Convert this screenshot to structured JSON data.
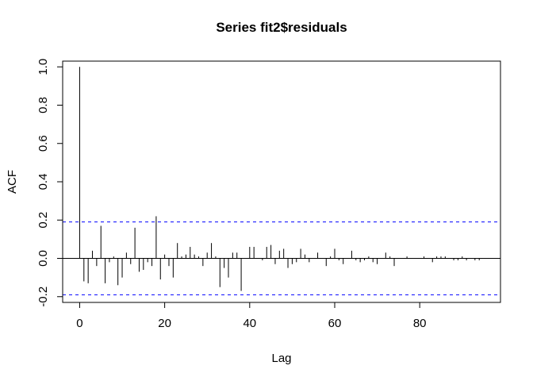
{
  "chart_data": {
    "type": "bar",
    "title": "Series  fit2$residuals",
    "xlabel": "Lag",
    "ylabel": "ACF",
    "xlim": [
      -4,
      99
    ],
    "ylim": [
      -0.23,
      1.03
    ],
    "xticks": [
      0,
      20,
      40,
      60,
      80
    ],
    "xtick_labels": [
      "0",
      "20",
      "40",
      "60",
      "80"
    ],
    "yticks": [
      -0.2,
      0.0,
      0.2,
      0.4,
      0.6,
      0.8,
      1.0
    ],
    "ytick_labels": [
      "-0.2",
      "0.0",
      "0.2",
      "0.4",
      "0.6",
      "0.8",
      "1.0"
    ],
    "confidence_bounds": [
      0.19,
      -0.19
    ],
    "confidence_color": "#0000ff",
    "zero_line": 0,
    "lags": [
      0,
      1,
      2,
      3,
      4,
      5,
      6,
      7,
      8,
      9,
      10,
      11,
      12,
      13,
      14,
      15,
      16,
      17,
      18,
      19,
      20,
      21,
      22,
      23,
      24,
      25,
      26,
      27,
      28,
      29,
      30,
      31,
      32,
      33,
      34,
      35,
      36,
      37,
      38,
      39,
      40,
      41,
      42,
      43,
      44,
      45,
      46,
      47,
      48,
      49,
      50,
      51,
      52,
      53,
      54,
      55,
      56,
      57,
      58,
      59,
      60,
      61,
      62,
      63,
      64,
      65,
      66,
      67,
      68,
      69,
      70,
      71,
      72,
      73,
      74,
      75,
      76,
      77,
      78,
      79,
      80,
      81,
      82,
      83,
      84,
      85,
      86,
      87,
      88,
      89,
      90,
      91,
      92,
      93,
      94,
      95
    ],
    "values": [
      1.0,
      -0.12,
      -0.13,
      0.04,
      -0.04,
      0.17,
      -0.13,
      -0.02,
      0.01,
      -0.14,
      -0.1,
      0.03,
      -0.03,
      0.16,
      -0.07,
      -0.06,
      -0.02,
      -0.04,
      0.22,
      -0.11,
      0.02,
      -0.04,
      -0.1,
      0.08,
      0.01,
      0.02,
      0.06,
      0.02,
      0.01,
      -0.04,
      0.03,
      0.08,
      0.01,
      -0.15,
      -0.05,
      -0.1,
      0.03,
      0.03,
      -0.17,
      0.0,
      0.06,
      0.06,
      0.0,
      -0.01,
      0.06,
      0.07,
      -0.03,
      0.04,
      0.05,
      -0.05,
      -0.03,
      -0.02,
      0.05,
      0.02,
      -0.02,
      0.0,
      0.03,
      0.0,
      -0.04,
      0.01,
      0.05,
      -0.01,
      -0.03,
      0.0,
      0.04,
      -0.01,
      -0.02,
      -0.01,
      0.01,
      -0.02,
      -0.03,
      0.0,
      0.03,
      0.01,
      -0.04,
      0.0,
      0.0,
      0.01,
      0.0,
      0.0,
      0.0,
      0.01,
      0.0,
      -0.02,
      0.01,
      0.01,
      0.01,
      0.0,
      -0.01,
      -0.01,
      0.01,
      -0.01,
      0.0,
      -0.01,
      -0.01,
      0.0
    ]
  }
}
